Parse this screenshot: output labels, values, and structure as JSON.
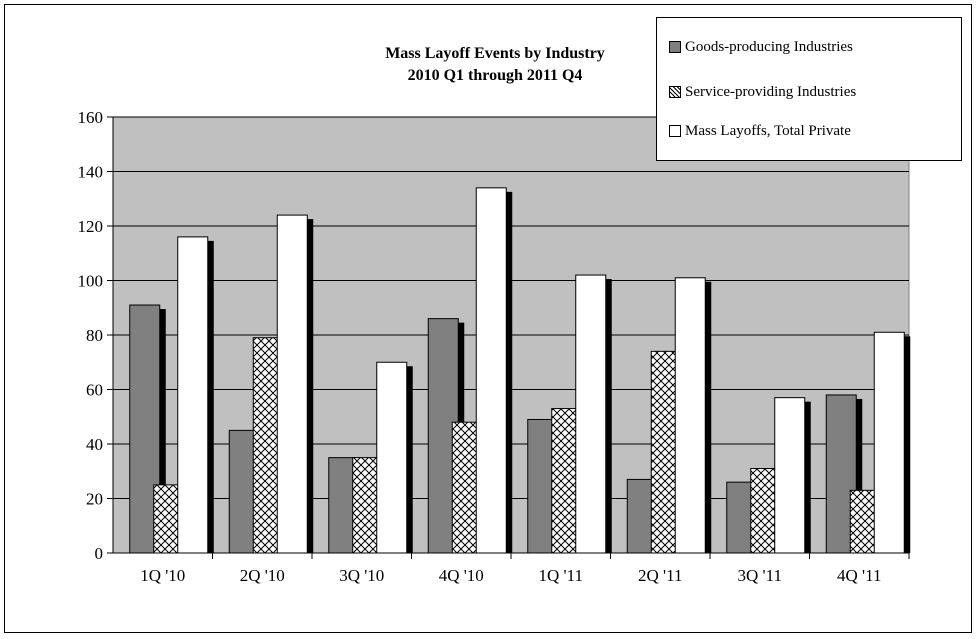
{
  "chart_data": {
    "type": "bar",
    "title": [
      "Mass Layoff Events by Industry",
      "2010 Q1 through 2011 Q4"
    ],
    "categories": [
      "1Q '10",
      "2Q '10",
      "3Q '10",
      "4Q '10",
      "1Q '11",
      "2Q '11",
      "3Q '11",
      "4Q '11"
    ],
    "series": [
      {
        "name": "Goods-producing Industries",
        "values": [
          91,
          45,
          35,
          86,
          49,
          27,
          26,
          58
        ],
        "fill": "#808080",
        "pattern": "solid"
      },
      {
        "name": "Service-providing Industries",
        "values": [
          25,
          79,
          35,
          48,
          53,
          74,
          31,
          23
        ],
        "fill": "#ffffff",
        "pattern": "crosshatch"
      },
      {
        "name": "Mass Layoffs, Total Private",
        "values": [
          116,
          124,
          70,
          134,
          102,
          101,
          57,
          81
        ],
        "fill": "#ffffff",
        "pattern": "solid"
      }
    ],
    "ylim": [
      0,
      160
    ],
    "yticks": [
      "0",
      "20",
      "40",
      "60",
      "80",
      "100",
      "120",
      "140",
      "160"
    ],
    "grid": true,
    "legend_position": "top-right",
    "plot_background": "#c0c0c0",
    "shadow_color": "#000000"
  }
}
